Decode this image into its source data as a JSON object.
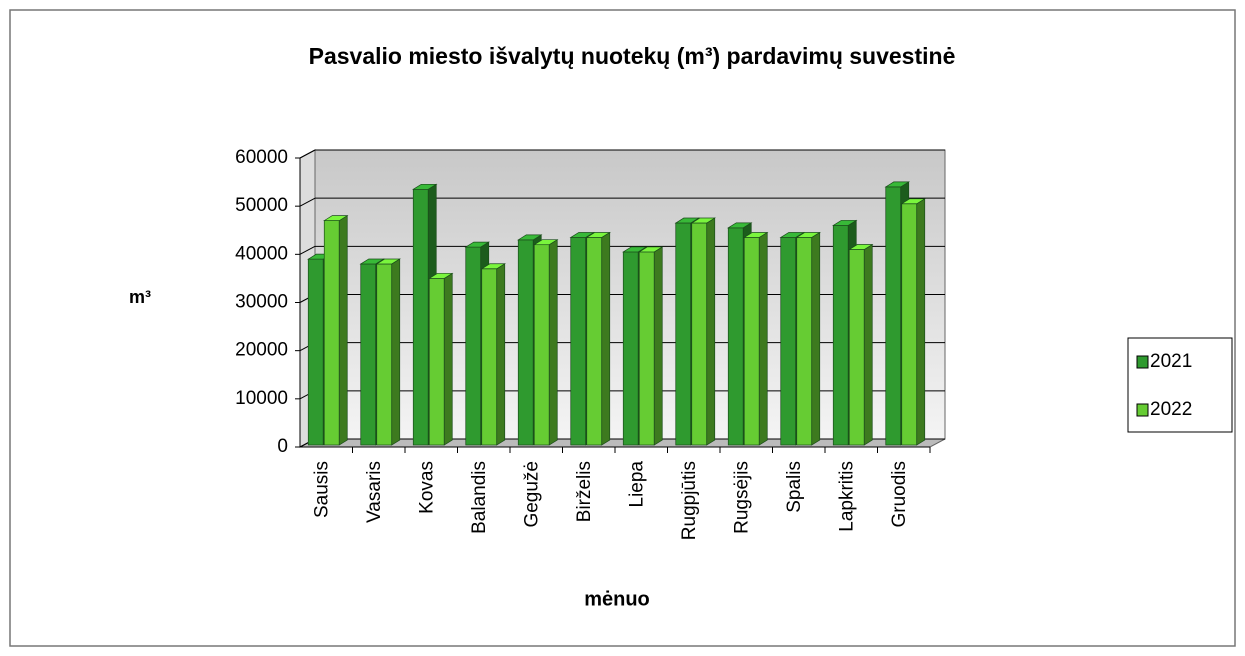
{
  "chart_data": {
    "type": "bar",
    "title": "Pasvalio miesto išvalytų nuotekų (m³) pardavimų suvestinė",
    "x_label": "mėnuo",
    "y_label": "m³",
    "categories": [
      "Sausis",
      "Vasaris",
      "Kovas",
      "Balandis",
      "Gegužė",
      "Birželis",
      "Liepa",
      "Rugpjūtis",
      "Rugsėjis",
      "Spalis",
      "Lapkritis",
      "Gruodis"
    ],
    "series": [
      {
        "name": "2021",
        "color": "#2f9a2f",
        "values": [
          39000,
          38000,
          53500,
          41500,
          43000,
          43500,
          40500,
          46500,
          45500,
          43500,
          46000,
          54000
        ]
      },
      {
        "name": "2022",
        "color": "#66cc33",
        "values": [
          47000,
          38000,
          35000,
          37000,
          42000,
          43500,
          40500,
          46500,
          43500,
          43500,
          41000,
          50500
        ]
      }
    ],
    "ylim": [
      0,
      60000
    ],
    "yticks": [
      0,
      10000,
      20000,
      30000,
      40000,
      50000,
      60000
    ],
    "grid": true,
    "legend": "right"
  }
}
